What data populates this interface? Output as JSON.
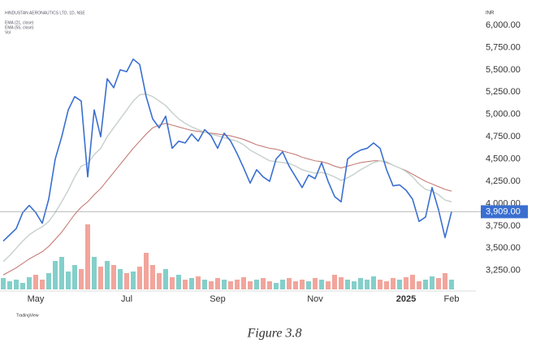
{
  "chart_data": {
    "type": "line",
    "title": "HINDUSTAN AERONAUTICS LTD, 1D, NSE",
    "currency": "INR",
    "caption": "Figure 3.8",
    "watermark": "TradingView",
    "categories": [
      null,
      null,
      null,
      null,
      null,
      "May",
      null,
      null,
      null,
      null,
      null,
      null,
      null,
      null,
      null,
      null,
      null,
      null,
      null,
      "Jul",
      null,
      null,
      null,
      null,
      null,
      null,
      null,
      null,
      null,
      null,
      null,
      null,
      null,
      "Sep",
      null,
      null,
      null,
      null,
      null,
      null,
      null,
      null,
      null,
      null,
      null,
      null,
      null,
      null,
      "Nov",
      null,
      null,
      null,
      null,
      null,
      null,
      null,
      null,
      null,
      null,
      null,
      null,
      null,
      "2025",
      null,
      null,
      null,
      null,
      null,
      null,
      "Feb"
    ],
    "series": [
      {
        "color": "#3a6fd0",
        "values": [
          3580,
          3650,
          3720,
          3900,
          3980,
          3900,
          3780,
          4050,
          4500,
          4750,
          5050,
          5200,
          5150,
          4300,
          5050,
          4750,
          5400,
          5300,
          5500,
          5480,
          5620,
          5560,
          5200,
          4950,
          4850,
          4980,
          4620,
          4700,
          4680,
          4780,
          4700,
          4830,
          4760,
          4620,
          4790,
          4700,
          4560,
          4400,
          4230,
          4380,
          4300,
          4250,
          4500,
          4580,
          4420,
          4300,
          4180,
          4320,
          4280,
          4460,
          4250,
          4080,
          4020,
          4500,
          4560,
          4600,
          4620,
          4680,
          4620,
          4380,
          4200,
          4210,
          4150,
          4050,
          3800,
          3850,
          4180,
          3930,
          3620,
          3909
        ],
        "value_labels": [
          null,
          null,
          null,
          null,
          null,
          null,
          null,
          null,
          null,
          null,
          null,
          null,
          null,
          null,
          null,
          null,
          null,
          null,
          null,
          null,
          null,
          null,
          null,
          null,
          null,
          null,
          null,
          null,
          null,
          null,
          null,
          null,
          null,
          null,
          null,
          null,
          null,
          null,
          null,
          null,
          null,
          null,
          null,
          null,
          null,
          null,
          null,
          null,
          null,
          null,
          null,
          null,
          null,
          null,
          null,
          null,
          null,
          null,
          null,
          null,
          null,
          null,
          null,
          null,
          null,
          null,
          null,
          null,
          null,
          "3,909.00"
        ]
      },
      {
        "name": "EMA (21, close)",
        "color": "#c9d2ce",
        "values": [
          3350,
          3420,
          3500,
          3580,
          3650,
          3700,
          3740,
          3800,
          3900,
          4020,
          4150,
          4300,
          4420,
          4450,
          4550,
          4620,
          4750,
          4850,
          4950,
          5050,
          5150,
          5220,
          5230,
          5200,
          5150,
          5100,
          5020,
          4950,
          4900,
          4860,
          4830,
          4800,
          4780,
          4760,
          4740,
          4720,
          4700,
          4660,
          4600,
          4560,
          4520,
          4480,
          4470,
          4460,
          4450,
          4420,
          4380,
          4360,
          4340,
          4350,
          4330,
          4300,
          4260,
          4290,
          4330,
          4380,
          4420,
          4460,
          4480,
          4470,
          4430,
          4400,
          4360,
          4300,
          4220,
          4160,
          4140,
          4100,
          4040,
          4020
        ]
      },
      {
        "name": "EMA (55, close)",
        "color": "#c0706a",
        "values": [
          3200,
          3240,
          3280,
          3330,
          3380,
          3420,
          3460,
          3520,
          3600,
          3680,
          3780,
          3880,
          3960,
          4020,
          4100,
          4170,
          4260,
          4350,
          4440,
          4530,
          4620,
          4700,
          4780,
          4850,
          4880,
          4900,
          4880,
          4860,
          4840,
          4820,
          4810,
          4800,
          4790,
          4780,
          4770,
          4760,
          4740,
          4720,
          4690,
          4660,
          4640,
          4620,
          4610,
          4590,
          4570,
          4550,
          4520,
          4500,
          4480,
          4470,
          4450,
          4420,
          4400,
          4420,
          4440,
          4460,
          4470,
          4480,
          4480,
          4460,
          4430,
          4400,
          4370,
          4330,
          4290,
          4250,
          4220,
          4190,
          4160,
          4140
        ]
      },
      {
        "name": "Vol",
        "up_color": "#6fc7c1",
        "down_color": "#f0958b",
        "values": [
          14,
          10,
          12,
          8,
          15,
          18,
          12,
          20,
          35,
          40,
          22,
          30,
          25,
          80,
          40,
          28,
          35,
          30,
          25,
          20,
          22,
          28,
          45,
          30,
          20,
          25,
          15,
          18,
          12,
          14,
          16,
          12,
          10,
          14,
          12,
          10,
          12,
          15,
          10,
          12,
          14,
          10,
          8,
          12,
          14,
          10,
          12,
          10,
          14,
          12,
          10,
          18,
          15,
          12,
          10,
          14,
          12,
          16,
          12,
          10,
          14,
          12,
          15,
          18,
          10,
          12,
          16,
          14,
          20,
          12
        ]
      }
    ],
    "ylim": [
      3020,
      6210
    ],
    "yticks": [
      {
        "value": 3250,
        "label": "3,250.00"
      },
      {
        "value": 3500,
        "label": "3,500.00"
      },
      {
        "value": 3750,
        "label": "3,750.00"
      },
      {
        "value": 4000,
        "label": "4,000.00"
      },
      {
        "value": 4250,
        "label": "4,250.00"
      },
      {
        "value": 4500,
        "label": "4,500.00"
      },
      {
        "value": 4750,
        "label": "4,750.00"
      },
      {
        "value": 5000,
        "label": "5,000.00"
      },
      {
        "value": 5250,
        "label": "5,250.00"
      },
      {
        "value": 5500,
        "label": "5,500.00"
      },
      {
        "value": 5750,
        "label": "5,750.00"
      },
      {
        "value": 6000,
        "label": "6,000.00"
      }
    ]
  }
}
